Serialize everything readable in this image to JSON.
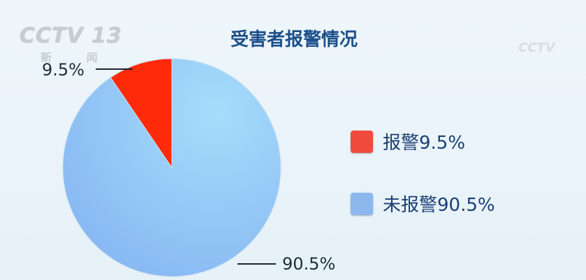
{
  "watermark": {
    "logo": "CCTV 13",
    "subtitle": "新 闻",
    "corner_logo": "CCTV"
  },
  "chart_data": {
    "type": "pie",
    "title": "受害者报警情况",
    "categories": [
      "报警",
      "未报警"
    ],
    "values": [
      9.5,
      90.5
    ],
    "unit": "%",
    "colors": [
      "#ff2a0a",
      "#8fc3f5"
    ],
    "data_labels": [
      "9.5%",
      "90.5%"
    ],
    "legend": {
      "placement": "right",
      "entries": [
        "报警9.5%",
        "未报警90.5%"
      ],
      "colors": [
        "#f04a3c",
        "#8db8ee"
      ]
    },
    "start_angle": "12 o'clock",
    "direction": "counterclockwise for first slice"
  }
}
